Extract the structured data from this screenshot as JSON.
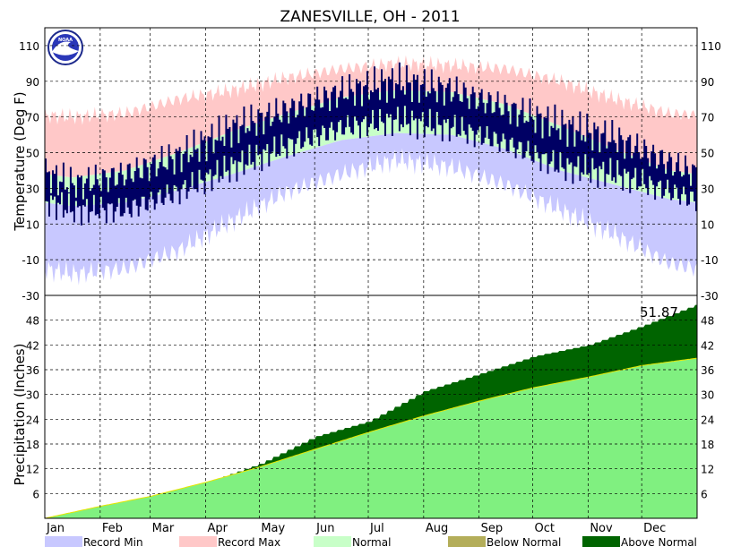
{
  "chart_data": {
    "type": "area",
    "title": "ZANESVILLE, OH - 2011",
    "months": [
      "Jan",
      "Feb",
      "Mar",
      "Apr",
      "May",
      "Jun",
      "Jul",
      "Aug",
      "Sep",
      "Oct",
      "Nov",
      "Dec"
    ],
    "legend": [
      {
        "key": "record_min",
        "label": "Record Min",
        "color": "#c8c8ff"
      },
      {
        "key": "record_max",
        "label": "Record Max",
        "color": "#ffc8c8"
      },
      {
        "key": "normal",
        "label": "Normal",
        "color": "#c8ffc8"
      },
      {
        "key": "below_normal",
        "label": "Below Normal",
        "color": "#b4ae5a"
      },
      {
        "key": "above_normal",
        "label": "Above Normal",
        "color": "#006400"
      }
    ],
    "temperature": {
      "ylabel": "Temperature (Deg F)",
      "ylim": [
        -30,
        120
      ],
      "yticks": [
        -10,
        10,
        30,
        50,
        70,
        90,
        110
      ],
      "actual_color": "#000064",
      "record_max_monthly": [
        70,
        72,
        80,
        85,
        92,
        97,
        100,
        99,
        97,
        90,
        80,
        72
      ],
      "normal_high_monthly": [
        36,
        40,
        50,
        62,
        72,
        81,
        85,
        84,
        77,
        65,
        52,
        40
      ],
      "normal_low_monthly": [
        20,
        22,
        29,
        38,
        48,
        57,
        61,
        60,
        52,
        40,
        32,
        24
      ],
      "record_min_monthly": [
        -18,
        -15,
        -5,
        12,
        28,
        38,
        46,
        42,
        32,
        18,
        4,
        -12
      ],
      "observed_high_monthly": [
        32,
        38,
        48,
        64,
        74,
        84,
        90,
        85,
        75,
        65,
        58,
        44
      ],
      "observed_low_monthly": [
        18,
        18,
        28,
        42,
        54,
        64,
        68,
        64,
        55,
        42,
        38,
        28
      ]
    },
    "precipitation": {
      "ylabel": "Precipitation (Inches)",
      "ylim": [
        0,
        54
      ],
      "yticks": [
        6,
        12,
        18,
        24,
        30,
        36,
        42,
        48
      ],
      "total_label": "51.87",
      "normal_cumulative_month_start": [
        0,
        2.9,
        5.3,
        8.7,
        12.4,
        16.7,
        20.8,
        24.8,
        28.4,
        31.6,
        34.2,
        37.0,
        38.8
      ],
      "observed_cumulative_month_start": [
        0,
        2.6,
        4.6,
        8.6,
        13.2,
        19.8,
        23.5,
        30.8,
        35.0,
        39.2,
        42.0,
        46.6,
        51.87
      ]
    }
  }
}
